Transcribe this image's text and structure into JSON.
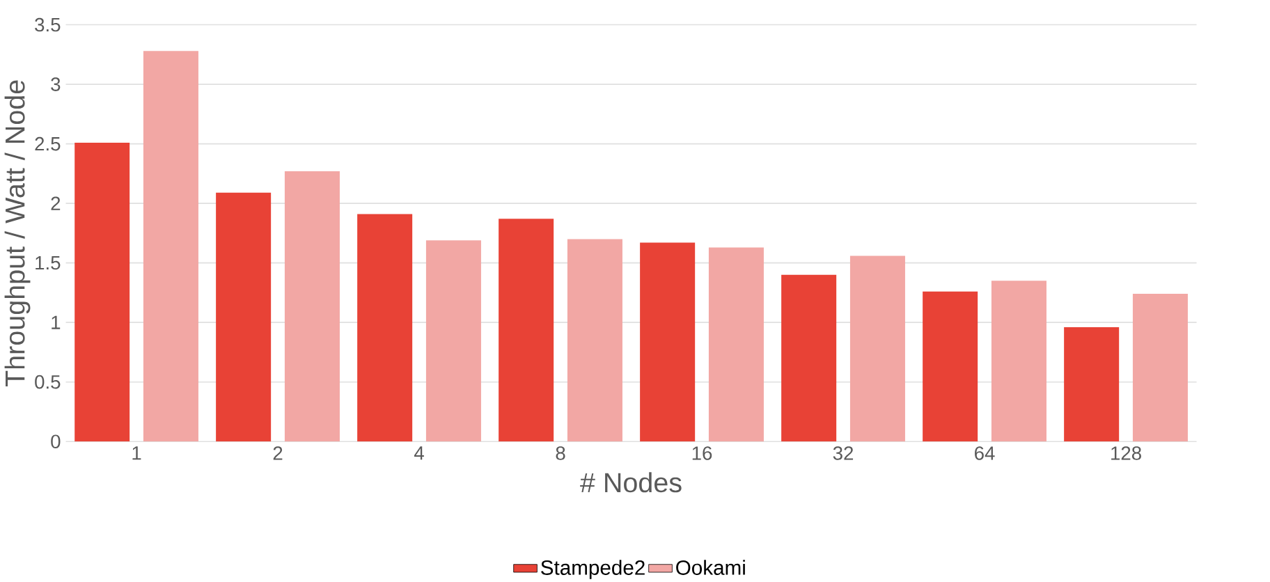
{
  "chart_data": {
    "type": "bar",
    "xlabel": "# Nodes",
    "ylabel": "Throughput / Watt / Node",
    "categories": [
      "1",
      "2",
      "4",
      "8",
      "16",
      "32",
      "64",
      "128"
    ],
    "series": [
      {
        "name": "Stampede2",
        "color": "#e84236",
        "values": [
          2.51,
          2.09,
          1.91,
          1.87,
          1.67,
          1.4,
          1.26,
          0.96
        ]
      },
      {
        "name": "Ookami",
        "color": "#f2a7a4",
        "values": [
          3.28,
          2.27,
          1.69,
          1.7,
          1.63,
          1.56,
          1.35,
          1.24
        ]
      }
    ],
    "ylim": [
      0,
      3.5
    ],
    "yticks": [
      0,
      0.5,
      1,
      1.5,
      2,
      2.5,
      3,
      3.5
    ],
    "grid": "y",
    "legend": "bottom"
  }
}
